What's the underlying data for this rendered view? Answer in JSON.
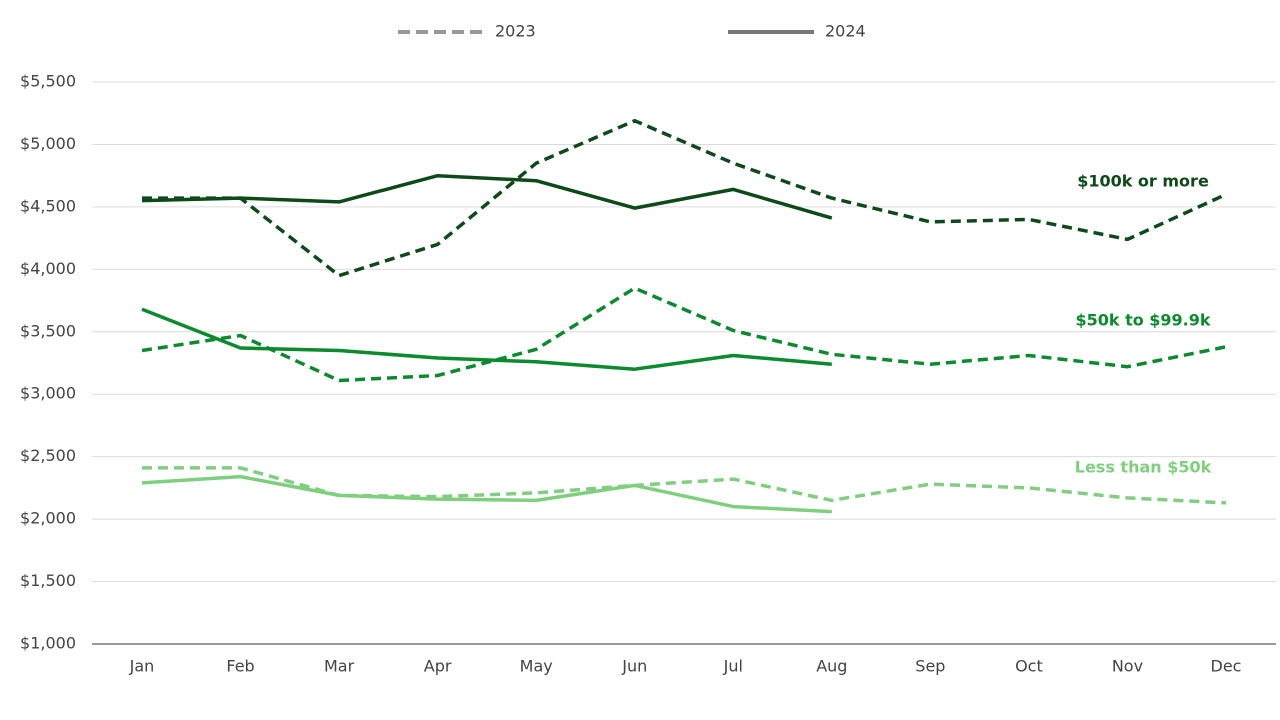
{
  "chart_data": {
    "type": "line",
    "categories": [
      "Jan",
      "Feb",
      "Mar",
      "Apr",
      "May",
      "Jun",
      "Jul",
      "Aug",
      "Sep",
      "Oct",
      "Nov",
      "Dec"
    ],
    "ylim": [
      1000,
      5500
    ],
    "yticks": [
      {
        "value": 1000,
        "label": "$1,000"
      },
      {
        "value": 1500,
        "label": "$1,500"
      },
      {
        "value": 2000,
        "label": "$2,000"
      },
      {
        "value": 2500,
        "label": "$2,500"
      },
      {
        "value": 3000,
        "label": "$3,000"
      },
      {
        "value": 3500,
        "label": "$3,500"
      },
      {
        "value": 4000,
        "label": "$4,000"
      },
      {
        "value": 4500,
        "label": "$4,500"
      },
      {
        "value": 5000,
        "label": "$5,000"
      },
      {
        "value": 5500,
        "label": "$5,500"
      }
    ],
    "grid": true,
    "legend": [
      {
        "name": "2023",
        "color": "#999999",
        "dashed": true
      },
      {
        "name": "2024",
        "color": "#777777",
        "dashed": false
      }
    ],
    "groups": [
      {
        "name": "$100k or more",
        "color": "#0d4a1a",
        "series": [
          {
            "values": [
              4570,
              4570,
              3950,
              4200,
              4850,
              5190,
              4850,
              4570,
              4380,
              4400,
              4240,
              4600
            ]
          },
          {
            "values": [
              4550,
              4570,
              4540,
              4750,
              4710,
              4490,
              4640,
              4410,
              null,
              null,
              null,
              null
            ]
          }
        ]
      },
      {
        "name": "$50k to $99.9k",
        "color": "#0b8a2e",
        "series": [
          {
            "values": [
              3350,
              3470,
              3110,
              3150,
              3360,
              3850,
              3510,
              3320,
              3240,
              3310,
              3220,
              3380
            ]
          },
          {
            "values": [
              3680,
              3370,
              3350,
              3290,
              3260,
              3200,
              3310,
              3240,
              null,
              null,
              null,
              null
            ]
          }
        ]
      },
      {
        "name": "Less than $50k",
        "color": "#7fcf7f",
        "series": [
          {
            "values": [
              2410,
              2410,
              2190,
              2180,
              2210,
              2270,
              2320,
              2150,
              2280,
              2250,
              2170,
              2130
            ]
          },
          {
            "values": [
              2290,
              2340,
              2190,
              2160,
              2150,
              2270,
              2100,
              2060,
              null,
              null,
              null,
              null
            ]
          }
        ]
      }
    ]
  }
}
